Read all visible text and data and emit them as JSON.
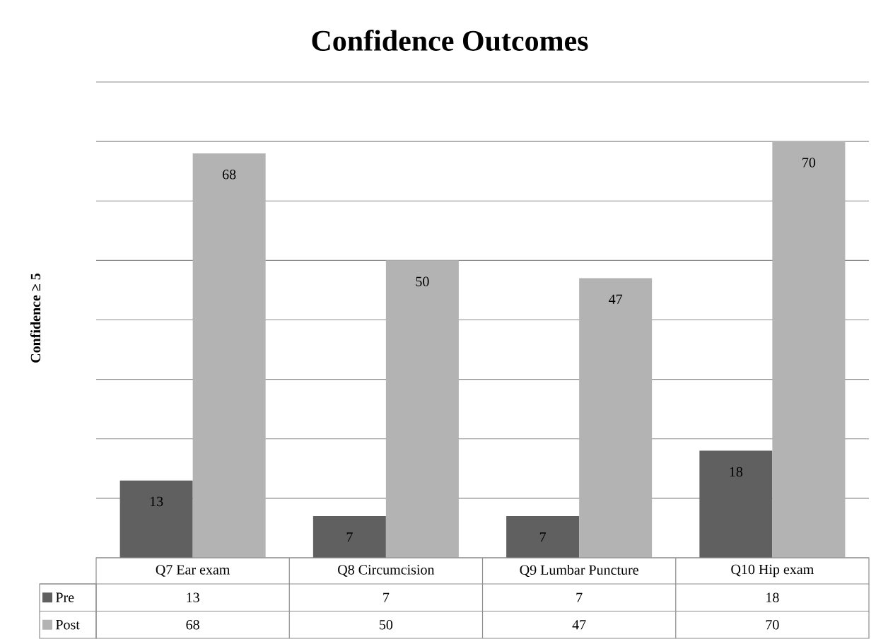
{
  "chart_data": {
    "type": "bar",
    "title": "Confidence Outcomes",
    "ylabel": "Confidence ≥ 5",
    "categories": [
      "Q7 Ear exam",
      "Q8 Circumcision",
      "Q9 Lumbar Puncture",
      "Q10 Hip exam"
    ],
    "series": [
      {
        "name": "Pre",
        "color": "#606060",
        "values": [
          13,
          7,
          7,
          18
        ],
        "value_labels": [
          "13",
          "7",
          "7",
          "18"
        ]
      },
      {
        "name": "Post",
        "color": "#b3b3b3",
        "values": [
          68,
          50,
          47,
          70
        ],
        "value_labels": [
          "68",
          "50",
          "47",
          "70"
        ]
      }
    ],
    "ylim": [
      0,
      80
    ],
    "yticks": [
      {
        "value": 0,
        "label": null
      },
      {
        "value": 10,
        "label": null
      },
      {
        "value": 20,
        "label": null
      },
      {
        "value": 30,
        "label": null
      },
      {
        "value": 40,
        "label": null
      },
      {
        "value": 50,
        "label": null
      },
      {
        "value": 60,
        "label": null
      },
      {
        "value": 70,
        "label": null
      },
      {
        "value": 80,
        "label": null
      }
    ],
    "grid": "y",
    "legend": "bottom",
    "tick_labels": "x"
  }
}
